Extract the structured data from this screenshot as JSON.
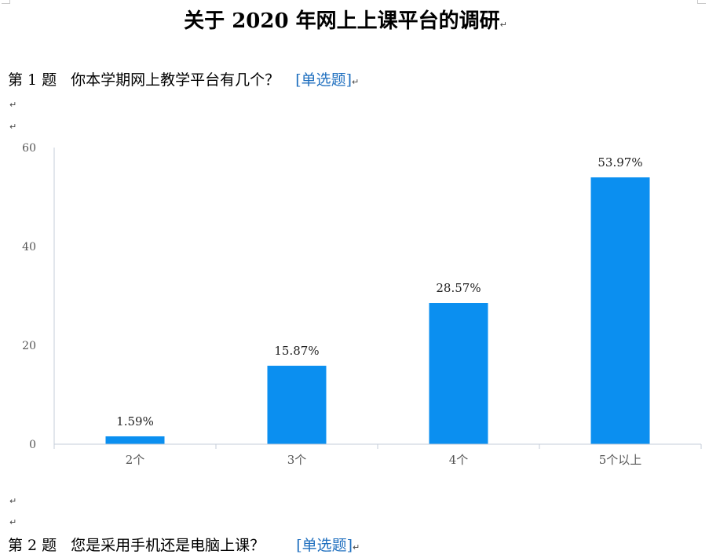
{
  "document": {
    "title": "关于 2020 年网上上课平台的调研",
    "paragraph_mark": "↵"
  },
  "questions": [
    {
      "number": "第 1 题",
      "text": "你本学期网上教学平台有几个？",
      "type": "[单选题]"
    },
    {
      "number": "第 2 题",
      "text": "您是采用手机还是电脑上课？",
      "type": "[单选题]"
    }
  ],
  "colors": {
    "bar": "#0b8ff0",
    "axis": "#c6cdd8",
    "tick_text": "#555555",
    "question_type": "#1f6fbf"
  },
  "chart_data": {
    "type": "bar",
    "categories": [
      "2个",
      "3个",
      "4个",
      "5个以上"
    ],
    "values": [
      1.59,
      15.87,
      28.57,
      53.97
    ],
    "data_labels": [
      "1.59%",
      "15.87%",
      "28.57%",
      "53.97%"
    ],
    "yticks": [
      0,
      20,
      40,
      60
    ],
    "ylim": [
      0,
      60
    ],
    "title": "",
    "xlabel": "",
    "ylabel": "",
    "grid": false,
    "legend": "none"
  }
}
